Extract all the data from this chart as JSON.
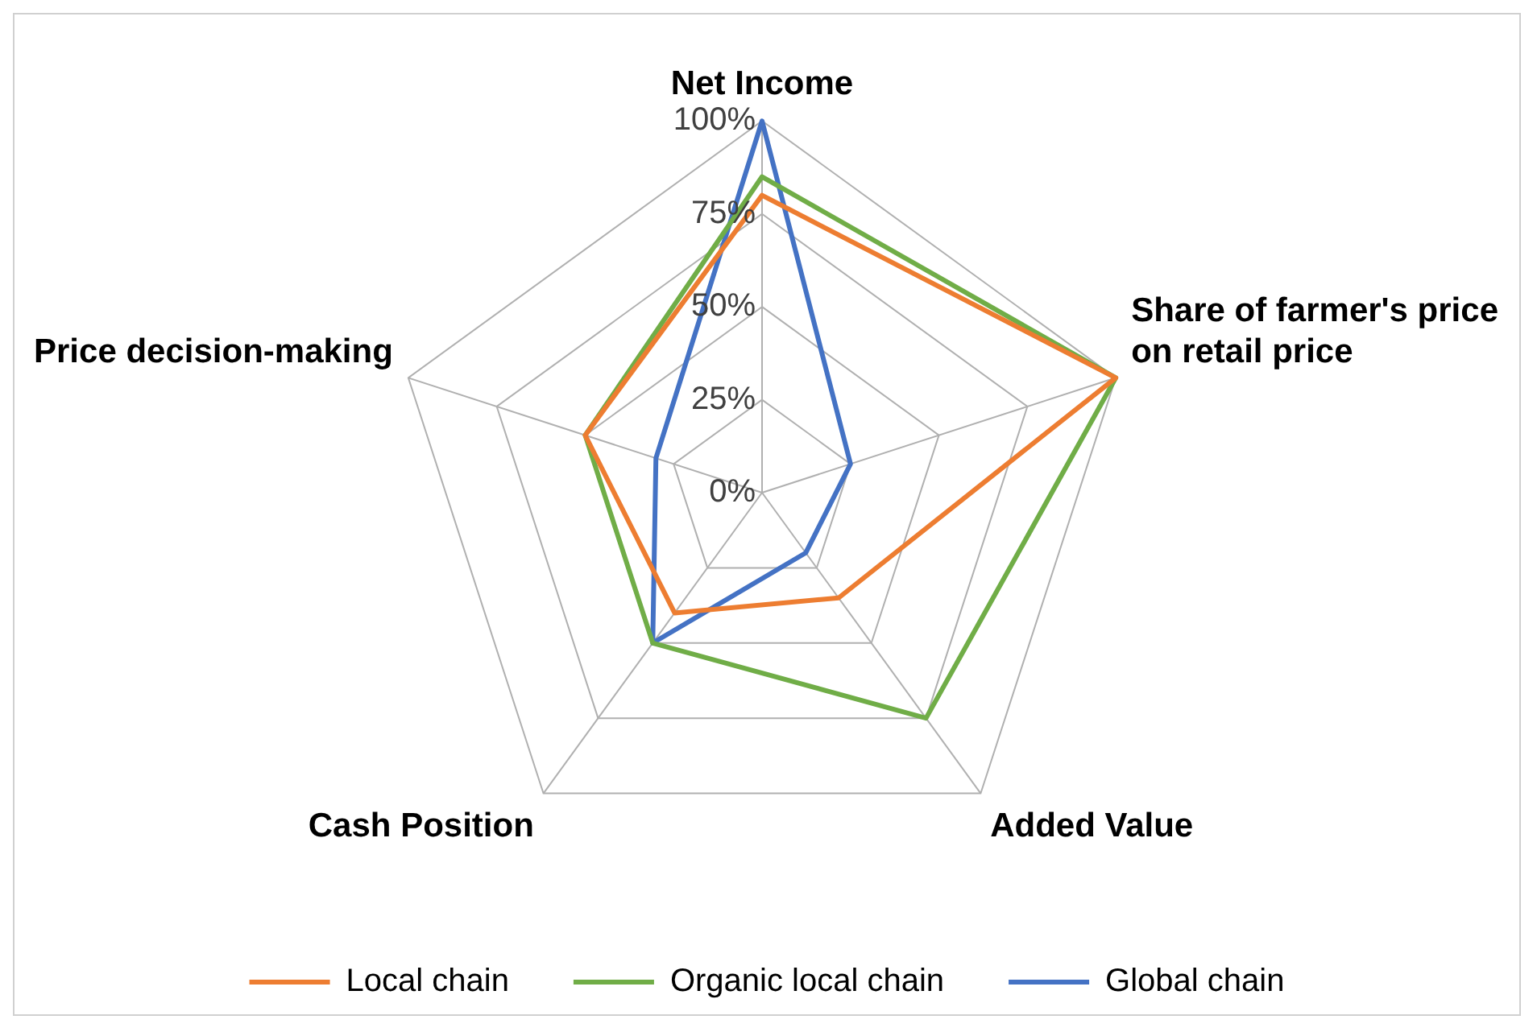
{
  "chart_data": {
    "type": "radar",
    "categories": [
      "Net Income",
      "Share of farmer's price on retail price",
      "Added Value",
      "Cash Position",
      "Price decision-making"
    ],
    "series": [
      {
        "name": "Local chain",
        "color": "#ed7d31",
        "values": [
          0.8,
          1,
          0.35,
          0.4,
          0.5
        ]
      },
      {
        "name": "Organic local chain",
        "color": "#70ad47",
        "values": [
          0.85,
          1,
          0.75,
          0.5,
          0.5
        ]
      },
      {
        "name": "Global chain",
        "color": "#4472c4",
        "values": [
          1,
          0.25,
          0.2,
          0.5,
          0.3
        ]
      }
    ],
    "ylim": [
      0,
      1
    ],
    "yticks": [
      {
        "value": 0,
        "label": "0%"
      },
      {
        "value": 0.25,
        "label": "25%"
      },
      {
        "value": 0.5,
        "label": "50%"
      },
      {
        "value": 0.75,
        "label": "75%"
      },
      {
        "value": 1,
        "label": "100%"
      }
    ],
    "grid": true,
    "legend": "bottom",
    "marker": "none",
    "line_style": "solid"
  }
}
